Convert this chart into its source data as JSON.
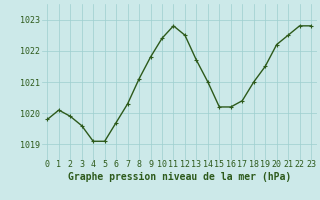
{
  "x": [
    0,
    1,
    2,
    3,
    4,
    5,
    6,
    7,
    8,
    9,
    10,
    11,
    12,
    13,
    14,
    15,
    16,
    17,
    18,
    19,
    20,
    21,
    22,
    23
  ],
  "y": [
    1019.8,
    1020.1,
    1019.9,
    1019.6,
    1019.1,
    1019.1,
    1019.7,
    1020.3,
    1021.1,
    1021.8,
    1022.4,
    1022.8,
    1022.5,
    1021.7,
    1021.0,
    1020.2,
    1020.2,
    1020.4,
    1021.0,
    1021.5,
    1022.2,
    1022.5,
    1022.8,
    1022.8
  ],
  "ylim": [
    1018.5,
    1023.5
  ],
  "yticks": [
    1019,
    1020,
    1021,
    1022,
    1023
  ],
  "xticks": [
    0,
    1,
    2,
    3,
    4,
    5,
    6,
    7,
    8,
    9,
    10,
    11,
    12,
    13,
    14,
    15,
    16,
    17,
    18,
    19,
    20,
    21,
    22,
    23
  ],
  "line_color": "#2d5a1b",
  "marker": "+",
  "marker_size": 3,
  "bg_color": "#cce9e9",
  "grid_color": "#9ecfcf",
  "xlabel": "Graphe pression niveau de la mer (hPa)",
  "xlabel_fontsize": 7,
  "tick_fontsize": 6,
  "line_width": 1.0
}
